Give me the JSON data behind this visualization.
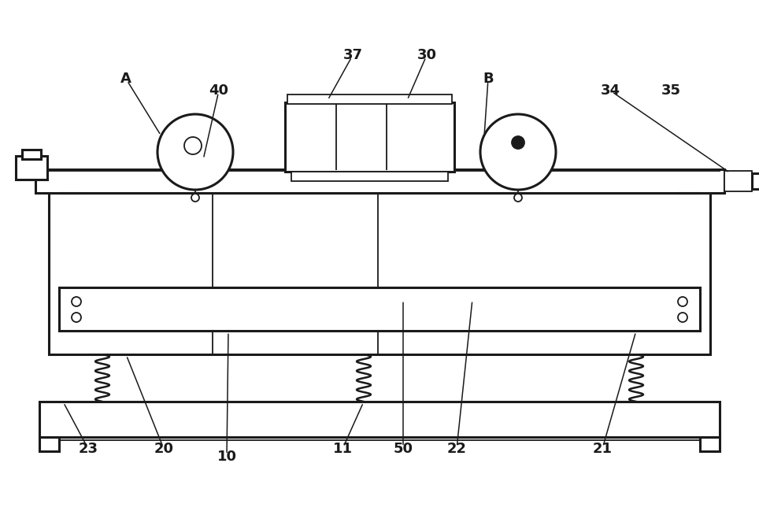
{
  "bg_color": "#ffffff",
  "lc": "#1a1a1a",
  "lw": 2.2,
  "tlw": 1.3,
  "fig_w": 9.64,
  "fig_h": 6.54
}
